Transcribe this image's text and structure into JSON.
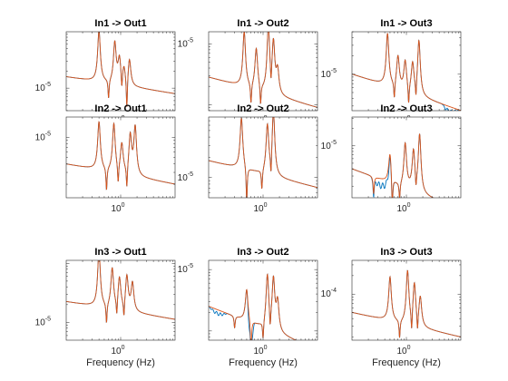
{
  "figure": {
    "background": "#ffffff",
    "series_colors": [
      "#0072BD",
      "#D95319"
    ]
  },
  "chart_data": [
    {
      "type": "line",
      "title": "In1 -> Out1",
      "xlabel": "",
      "ylabel": "",
      "x_scale": "log",
      "y_scale": "log",
      "xlim_hz": [
        0.1,
        10
      ],
      "x_ticks": [
        {
          "value": 1,
          "label": "10^0"
        }
      ],
      "y_ticks": [
        {
          "value": 1e-05,
          "label": "10^-5"
        }
      ],
      "ylim_decades": [
        -5.4,
        -4.0
      ],
      "baseline_decade": -4.95,
      "tilt": 0.15,
      "peaks": [
        {
          "f": 0.4,
          "a": 0.95
        },
        {
          "f": 0.78,
          "a": 0.75
        },
        {
          "f": 0.95,
          "a": 0.45
        },
        {
          "f": 1.15,
          "a": 0.3
        },
        {
          "f": 1.45,
          "a": 0.5
        }
      ],
      "notches": [
        {
          "f": 0.6,
          "d": 0.35
        },
        {
          "f": 1.05,
          "d": 0.3
        },
        {
          "f": 1.3,
          "d": 0.6
        }
      ],
      "series": [
        {
          "name": "",
          "color": "#0072BD"
        },
        {
          "name": "",
          "color": "#D95319"
        }
      ],
      "blue_deviation": []
    },
    {
      "type": "line",
      "title": "In1 -> Out2",
      "xlabel": "",
      "ylabel": "",
      "x_scale": "log",
      "y_scale": "log",
      "xlim_hz": [
        0.1,
        10
      ],
      "x_ticks": [
        {
          "value": 1,
          "label": "10^0"
        }
      ],
      "y_ticks": [
        {
          "value": 1e-05,
          "label": "10^-5"
        }
      ],
      "ylim_decades": [
        -6.1,
        -4.8
      ],
      "baseline_decade": -5.8,
      "tilt": 0.25,
      "peaks": [
        {
          "f": 0.45,
          "a": 0.95
        },
        {
          "f": 0.75,
          "a": 0.7
        },
        {
          "f": 1.25,
          "a": 1.1
        },
        {
          "f": 1.55,
          "a": 0.85
        },
        {
          "f": 1.85,
          "a": 0.4
        }
      ],
      "notches": [
        {
          "f": 0.6,
          "d": 0.35
        },
        {
          "f": 0.9,
          "d": 0.35
        },
        {
          "f": 1.4,
          "d": 0.3
        }
      ],
      "series": [
        {
          "name": "",
          "color": "#0072BD"
        },
        {
          "name": "",
          "color": "#D95319"
        }
      ],
      "blue_deviation": []
    },
    {
      "type": "line",
      "title": "In1 -> Out3",
      "xlabel": "",
      "ylabel": "",
      "x_scale": "log",
      "y_scale": "log",
      "xlim_hz": [
        0.1,
        10
      ],
      "x_ticks": [
        {
          "value": 1,
          "label": "10^0"
        }
      ],
      "y_ticks": [
        {
          "value": 1e-05,
          "label": "10^-5"
        }
      ],
      "ylim_decades": [
        -5.6,
        -4.3
      ],
      "baseline_decade": -5.3,
      "tilt": 0.3,
      "peaks": [
        {
          "f": 0.45,
          "a": 0.9
        },
        {
          "f": 0.7,
          "a": 0.55
        },
        {
          "f": 0.95,
          "a": 0.5
        },
        {
          "f": 1.3,
          "a": 0.5
        },
        {
          "f": 1.7,
          "a": 0.95
        }
      ],
      "notches": [
        {
          "f": 0.6,
          "d": 0.3
        },
        {
          "f": 1.1,
          "d": 0.35
        },
        {
          "f": 1.5,
          "d": 0.3
        }
      ],
      "series": [
        {
          "name": "",
          "color": "#0072BD"
        },
        {
          "name": "",
          "color": "#D95319"
        }
      ],
      "blue_deviation": [
        {
          "from_hz": 4.5,
          "to_hz": 9.0,
          "offset": -0.12
        }
      ]
    },
    {
      "type": "line",
      "title": "In2 -> Out1",
      "xlabel": "",
      "ylabel": "",
      "x_scale": "log",
      "y_scale": "log",
      "xlim_hz": [
        0.1,
        10
      ],
      "x_ticks": [
        {
          "value": 1,
          "label": "10^0"
        }
      ],
      "y_ticks": [
        {
          "value": 1e-05,
          "label": "10^-5"
        }
      ],
      "ylim_decades": [
        -5.9,
        -4.7
      ],
      "baseline_decade": -5.55,
      "tilt": 0.15,
      "peaks": [
        {
          "f": 0.4,
          "a": 0.75
        },
        {
          "f": 0.75,
          "a": 0.75
        },
        {
          "f": 1.05,
          "a": 0.45
        },
        {
          "f": 1.5,
          "a": 0.6
        },
        {
          "f": 1.85,
          "a": 0.75
        }
      ],
      "notches": [
        {
          "f": 0.55,
          "d": 0.35
        },
        {
          "f": 0.9,
          "d": 0.3
        },
        {
          "f": 1.3,
          "d": 0.35
        }
      ],
      "series": [
        {
          "name": "",
          "color": "#0072BD"
        },
        {
          "name": "",
          "color": "#D95319"
        }
      ],
      "blue_deviation": []
    },
    {
      "type": "line",
      "title": "In2 -> Out2",
      "xlabel": "",
      "ylabel": "",
      "x_scale": "log",
      "y_scale": "log",
      "xlim_hz": [
        0.1,
        10
      ],
      "x_ticks": [
        {
          "value": 1,
          "label": "10^0"
        }
      ],
      "y_ticks": [
        {
          "value": 1e-05,
          "label": "10^-5"
        }
      ],
      "ylim_decades": [
        -5.3,
        -4.1
      ],
      "baseline_decade": -4.95,
      "tilt": 0.2,
      "peaks": [
        {
          "f": 0.4,
          "a": 0.8
        },
        {
          "f": 1.2,
          "a": 0.75
        },
        {
          "f": 1.55,
          "a": 1.0
        }
      ],
      "notches": [
        {
          "f": 0.5,
          "d": 0.55
        },
        {
          "f": 0.95,
          "d": 0.3
        },
        {
          "f": 1.4,
          "d": 0.35
        }
      ],
      "series": [
        {
          "name": "",
          "color": "#0072BD"
        },
        {
          "name": "",
          "color": "#D95319"
        }
      ],
      "blue_deviation": []
    },
    {
      "type": "line",
      "title": "In2 -> Out3",
      "xlabel": "",
      "ylabel": "",
      "x_scale": "log",
      "y_scale": "log",
      "xlim_hz": [
        0.1,
        10
      ],
      "x_ticks": [
        {
          "value": 1,
          "label": "10^0"
        }
      ],
      "y_ticks": [
        {
          "value": 1e-05,
          "label": "10^-5"
        }
      ],
      "ylim_decades": [
        -5.9,
        -4.5
      ],
      "baseline_decade": -5.75,
      "tilt": 0.35,
      "peaks": [
        {
          "f": 0.5,
          "a": 0.55
        },
        {
          "f": 0.95,
          "a": 0.8
        },
        {
          "f": 1.35,
          "a": 0.7
        },
        {
          "f": 1.75,
          "a": 1.05
        }
      ],
      "notches": [
        {
          "f": 0.25,
          "d": 0.3
        },
        {
          "f": 0.55,
          "d": 0.55
        },
        {
          "f": 0.75,
          "d": 0.3
        },
        {
          "f": 1.5,
          "d": 0.25
        }
      ],
      "series": [
        {
          "name": "",
          "color": "#0072BD"
        },
        {
          "name": "",
          "color": "#D95319"
        }
      ],
      "blue_deviation": [
        {
          "from_hz": 0.22,
          "to_hz": 0.62,
          "offset": -0.18
        }
      ]
    },
    {
      "type": "line",
      "title": "In3 -> Out1",
      "xlabel": "Frequency (Hz)",
      "ylabel": "",
      "x_scale": "log",
      "y_scale": "log",
      "xlim_hz": [
        0.1,
        10
      ],
      "x_ticks": [
        {
          "value": 1,
          "label": "10^0"
        }
      ],
      "y_ticks": [
        {
          "value": 1e-05,
          "label": "10^-5"
        }
      ],
      "ylim_decades": [
        -5.3,
        -3.95
      ],
      "baseline_decade": -4.8,
      "tilt": 0.15,
      "peaks": [
        {
          "f": 0.4,
          "a": 1.0
        },
        {
          "f": 0.7,
          "a": 0.7
        },
        {
          "f": 0.95,
          "a": 0.55
        },
        {
          "f": 1.3,
          "a": 0.6
        },
        {
          "f": 1.65,
          "a": 0.5
        }
      ],
      "notches": [
        {
          "f": 0.55,
          "d": 0.35
        },
        {
          "f": 0.85,
          "d": 0.3
        },
        {
          "f": 1.15,
          "d": 0.3
        }
      ],
      "series": [
        {
          "name": "",
          "color": "#0072BD"
        },
        {
          "name": "",
          "color": "#D95319"
        }
      ],
      "blue_deviation": []
    },
    {
      "type": "line",
      "title": "In3 -> Out2",
      "xlabel": "Frequency (Hz)",
      "ylabel": "",
      "x_scale": "log",
      "y_scale": "log",
      "xlim_hz": [
        0.1,
        10
      ],
      "x_ticks": [
        {
          "value": 1,
          "label": "10^0"
        }
      ],
      "y_ticks": [
        {
          "value": 1e-05,
          "label": "10^-5"
        }
      ],
      "ylim_decades": [
        -6.15,
        -4.85
      ],
      "baseline_decade": -5.95,
      "tilt": 0.35,
      "peaks": [
        {
          "f": 0.5,
          "a": 0.55
        },
        {
          "f": 1.2,
          "a": 0.9
        },
        {
          "f": 1.55,
          "a": 0.85
        },
        {
          "f": 1.85,
          "a": 0.5
        }
      ],
      "notches": [
        {
          "f": 0.3,
          "d": 0.2
        },
        {
          "f": 0.6,
          "d": 0.55
        },
        {
          "f": 1.0,
          "d": 0.3
        },
        {
          "f": 1.35,
          "d": 0.3
        }
      ],
      "series": [
        {
          "name": "",
          "color": "#0072BD"
        },
        {
          "name": "",
          "color": "#D95319"
        }
      ],
      "blue_deviation": [
        {
          "from_hz": 0.1,
          "to_hz": 0.22,
          "offset": -0.09
        },
        {
          "from_hz": 0.5,
          "to_hz": 0.7,
          "offset": -0.25
        }
      ]
    },
    {
      "type": "line",
      "title": "In3 -> Out3",
      "xlabel": "Frequency (Hz)",
      "ylabel": "",
      "x_scale": "log",
      "y_scale": "log",
      "xlim_hz": [
        0.1,
        10
      ],
      "x_ticks": [
        {
          "value": 1,
          "label": "10^0"
        }
      ],
      "y_ticks": [
        {
          "value": 0.0001,
          "label": "10^-4"
        }
      ],
      "ylim_decades": [
        -4.75,
        -3.45
      ],
      "baseline_decade": -4.5,
      "tilt": 0.2,
      "peaks": [
        {
          "f": 0.5,
          "a": 0.75
        },
        {
          "f": 1.05,
          "a": 0.9
        },
        {
          "f": 1.4,
          "a": 0.7
        },
        {
          "f": 1.8,
          "a": 0.5
        }
      ],
      "notches": [
        {
          "f": 0.75,
          "d": 0.3
        },
        {
          "f": 1.25,
          "d": 0.35
        },
        {
          "f": 1.6,
          "d": 0.3
        }
      ],
      "series": [
        {
          "name": "",
          "color": "#0072BD"
        },
        {
          "name": "",
          "color": "#D95319"
        }
      ],
      "blue_deviation": []
    }
  ]
}
